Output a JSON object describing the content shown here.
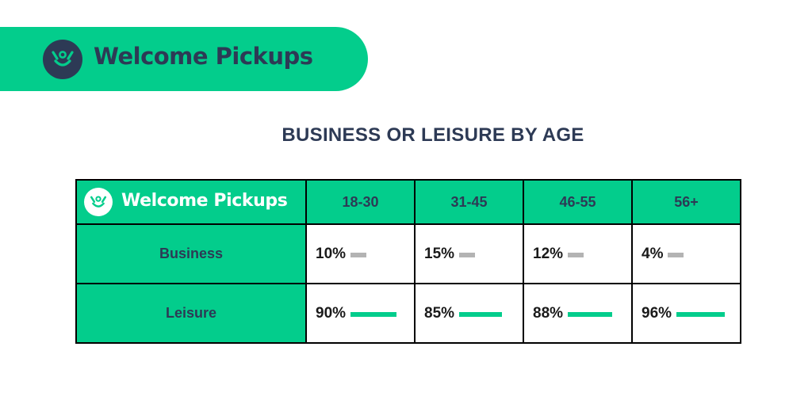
{
  "brand": {
    "name": "Welcome Pickups"
  },
  "chart_data": {
    "type": "table",
    "title": "BUSINESS OR LEISURE BY AGE",
    "columns": [
      "18-30",
      "31-45",
      "46-55",
      "56+"
    ],
    "rows": [
      {
        "label": "Business",
        "values": [
          10,
          15,
          12,
          4
        ],
        "display": [
          "10%",
          "15%",
          "12%",
          "4%"
        ],
        "bar_color": "#b3b3b3"
      },
      {
        "label": "Leisure",
        "values": [
          90,
          85,
          88,
          96
        ],
        "display": [
          "90%",
          "85%",
          "88%",
          "96%"
        ],
        "bar_color": "#03cd8c"
      }
    ]
  },
  "colors": {
    "accent": "#03cd8c",
    "navy": "#2d3a55",
    "grey_bar": "#b3b3b3"
  }
}
